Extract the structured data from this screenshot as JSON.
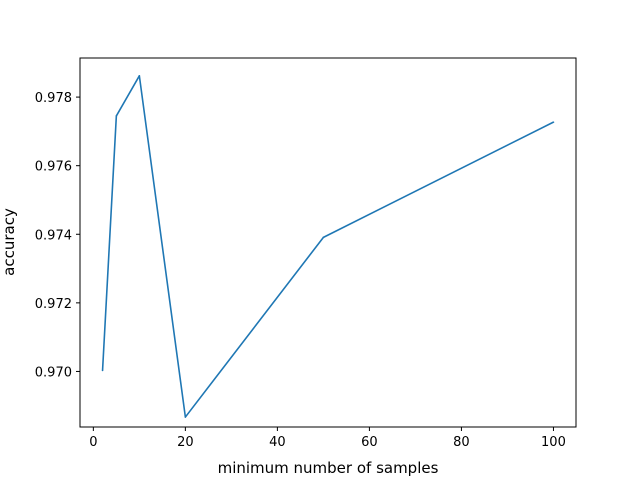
{
  "chart_data": {
    "type": "line",
    "title": "",
    "xlabel": "minimum number of samples",
    "ylabel": "accuracy",
    "xlim": [
      -2.9,
      104.9
    ],
    "ylim": [
      0.96838,
      0.97914
    ],
    "x_ticks": [
      {
        "value": 0,
        "label": "0"
      },
      {
        "value": 20,
        "label": "20"
      },
      {
        "value": 40,
        "label": "40"
      },
      {
        "value": 60,
        "label": "60"
      },
      {
        "value": 80,
        "label": "80"
      },
      {
        "value": 100,
        "label": "100"
      }
    ],
    "y_ticks": [
      {
        "value": 0.97,
        "label": "0.970"
      },
      {
        "value": 0.972,
        "label": "0.972"
      },
      {
        "value": 0.974,
        "label": "0.974"
      },
      {
        "value": 0.976,
        "label": "0.976"
      },
      {
        "value": 0.978,
        "label": "0.978"
      }
    ],
    "grid": false,
    "series": [
      {
        "color": "#1f77b4",
        "x": [
          2,
          5,
          10,
          20,
          50,
          100
        ],
        "y": [
          0.97003,
          0.97745,
          0.97862,
          0.96867,
          0.97391,
          0.97727
        ]
      }
    ]
  }
}
